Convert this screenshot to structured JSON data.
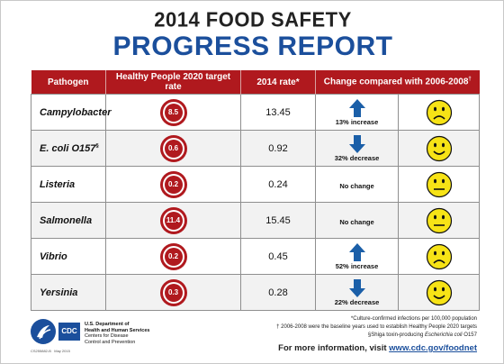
{
  "header": {
    "title_line1": "2014 FOOD SAFETY",
    "title_line2": "PROGRESS REPORT"
  },
  "table": {
    "columns": [
      "Pathogen",
      "Healthy People 2020 target rate",
      "2014 rate*",
      "Change compared with 2006-2008"
    ],
    "change_header_sup": "†",
    "rows": [
      {
        "pathogen": "Campylobacter",
        "sup": "",
        "target": "8.5",
        "rate": "13.45",
        "direction": "up",
        "change": "13% increase",
        "face": "sad"
      },
      {
        "pathogen": "E. coli O157",
        "sup": "§",
        "target": "0.6",
        "rate": "0.92",
        "direction": "down",
        "change": "32% decrease",
        "face": "happy"
      },
      {
        "pathogen": "Listeria",
        "sup": "",
        "target": "0.2",
        "rate": "0.24",
        "direction": "none",
        "change": "No change",
        "face": "neutral"
      },
      {
        "pathogen": "Salmonella",
        "sup": "",
        "target": "11.4",
        "rate": "15.45",
        "direction": "none",
        "change": "No change",
        "face": "neutral"
      },
      {
        "pathogen": "Vibrio",
        "sup": "",
        "target": "0.2",
        "rate": "0.45",
        "direction": "up",
        "change": "52% increase",
        "face": "sad"
      },
      {
        "pathogen": "Yersinia",
        "sup": "",
        "target": "0.3",
        "rate": "0.28",
        "direction": "down",
        "change": "22% decrease",
        "face": "happy"
      }
    ]
  },
  "colors": {
    "header_red": "#b0191e",
    "arrow_blue": "#1b5fa8",
    "face_yellow": "#f7e316",
    "title_blue": "#1b4f9c"
  },
  "footnotes": {
    "note1": "*Culture-confirmed infections per 100,000 population",
    "note2": "† 2006-2008 were the baseline years used to establish Healthy People 2020 targets",
    "note3_prefix": "§Shiga toxin-producing ",
    "note3_italic": "Escherichia coli",
    "note3_suffix": " O157"
  },
  "more_info": {
    "prefix": "For more information, visit ",
    "url": "www.cdc.gov/foodnet"
  },
  "logo": {
    "cdc_text": "CDC",
    "dept_line1": "U.S. Department of",
    "dept_line2": "Health and Human Services",
    "dept_line3": "Centers for Disease",
    "dept_line4": "Control and Prevention",
    "code": "CS255882-B",
    "date": "May 2015"
  }
}
